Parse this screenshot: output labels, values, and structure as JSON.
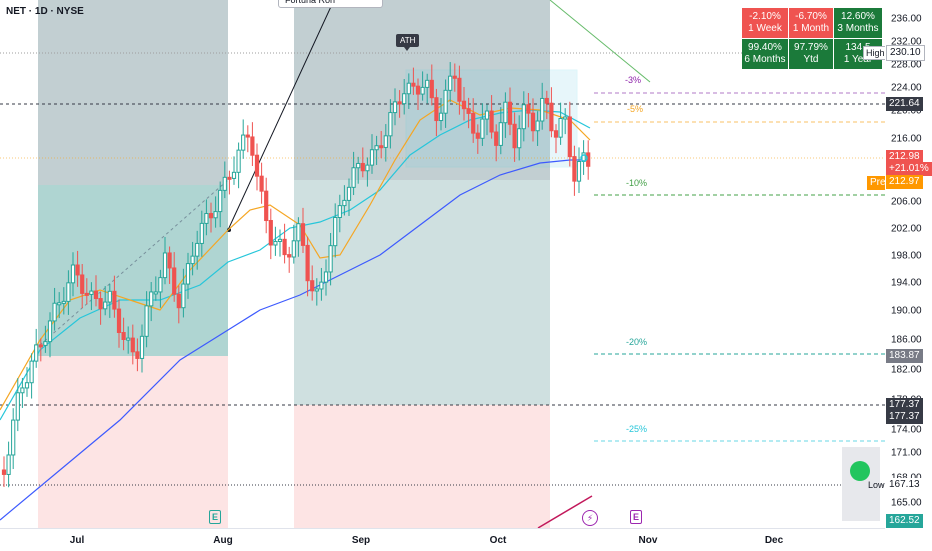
{
  "symbol": {
    "title": "NET · 1D · NYSE"
  },
  "annotations": {
    "note_text": "Fortuna Ron",
    "ath": "ATH",
    "high": "High",
    "low": "Low",
    "pre": "Pre"
  },
  "performance": [
    {
      "pct": "-2.10%",
      "period": "1 Week",
      "tone": "neg"
    },
    {
      "pct": "-6.70%",
      "period": "1 Month",
      "tone": "neg"
    },
    {
      "pct": "12.60%",
      "period": "3 Months",
      "tone": "pos"
    },
    {
      "pct": "99.40%",
      "period": "6 Months",
      "tone": "pos"
    },
    {
      "pct": "97.79%",
      "period": "Ytd",
      "tone": "pos"
    },
    {
      "pct": "134.5",
      "period": "1 Year",
      "tone": "pos"
    }
  ],
  "price_axis": {
    "ticks": [
      "236.00",
      "232.00",
      "228.00",
      "224.00",
      "220.00",
      "216.00",
      "210.00",
      "206.00",
      "202.00",
      "198.00",
      "194.00",
      "190.00",
      "186.00",
      "182.00",
      "178.00",
      "174.00",
      "171.00",
      "168.00",
      "165.00"
    ],
    "tags": [
      {
        "text": "230.10",
        "kind": "high"
      },
      {
        "text": "221.64",
        "kind": "dark"
      },
      {
        "text": "212.98",
        "kind": "red"
      },
      {
        "text": "+21.01%",
        "kind": "red"
      },
      {
        "text": "212.97",
        "kind": "pre"
      },
      {
        "text": "183.87",
        "kind": "gray"
      },
      {
        "text": "177.37",
        "kind": "dark"
      },
      {
        "text": "177.37",
        "kind": "dark"
      },
      {
        "text": "167.13",
        "kind": "low"
      },
      {
        "text": "162.52",
        "kind": "green"
      }
    ]
  },
  "time_axis": {
    "labels": [
      "Jul",
      "Aug",
      "Sep",
      "Oct",
      "Nov",
      "Dec"
    ]
  },
  "levels": {
    "m3": "-3%",
    "m5": "-5%",
    "m10": "-10%",
    "m20": "-20%",
    "m25": "-25%"
  },
  "events": {
    "earnings": "E",
    "flash": "⚡"
  },
  "colors": {
    "up": "#26a69a",
    "down": "#ef5350",
    "ema_fast": "#f5a623",
    "ema_mid": "#26c6da",
    "sma_slow": "#3d5afe",
    "zone_green": "#b2dfdb",
    "zone_red": "#ffcdd2",
    "gray_band": "#90a4ae"
  },
  "chart_data": {
    "type": "candlestick",
    "x_range": [
      "Jun",
      "Dec"
    ],
    "ylim": [
      162,
      238
    ],
    "last_price": 212.98,
    "pre_market": 212.97,
    "period_high": 230.1,
    "period_low": 167.13,
    "levels": {
      "3pct": 221.64,
      "10pct": 205.6,
      "20pct": 183.87,
      "25pct": 173.3
    }
  }
}
